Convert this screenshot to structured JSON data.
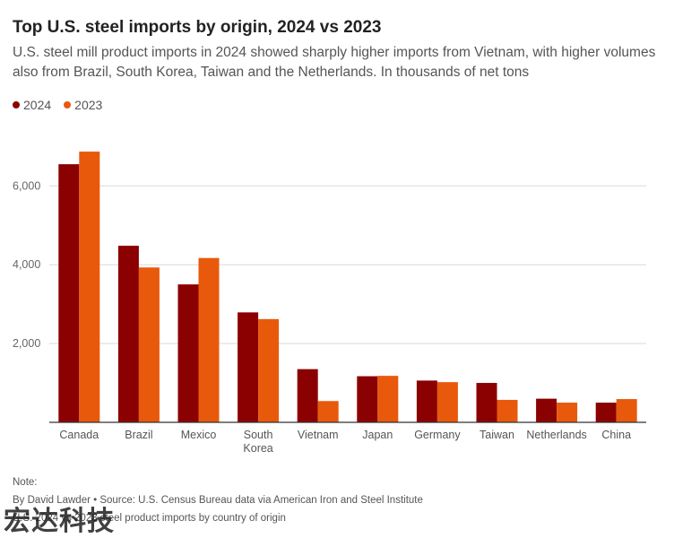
{
  "title": "Top U.S. steel imports by origin, 2024 vs 2023",
  "subtitle": "U.S. steel mill product imports in 2024 showed sharply higher imports from Vietnam, with higher volumes also from Brazil, South Korea, Taiwan and the Netherlands. In thousands of net tons",
  "legend": [
    {
      "label": "2024",
      "color": "#8b0000"
    },
    {
      "label": "2023",
      "color": "#e8590c"
    }
  ],
  "chart_data": {
    "type": "bar",
    "categories": [
      "Canada",
      "Brazil",
      "Mexico",
      "South Korea",
      "Vietnam",
      "Japan",
      "Germany",
      "Taiwan",
      "Netherlands",
      "China"
    ],
    "category_lines": [
      [
        "Canada"
      ],
      [
        "Brazil"
      ],
      [
        "Mexico"
      ],
      [
        "South",
        "Korea"
      ],
      [
        "Vietnam"
      ],
      [
        "Japan"
      ],
      [
        "Germany"
      ],
      [
        "Taiwan"
      ],
      [
        "Netherlands"
      ],
      [
        "China"
      ]
    ],
    "series": [
      {
        "name": "2024",
        "color": "#8b0000",
        "values": [
          6550,
          4480,
          3500,
          2790,
          1350,
          1170,
          1060,
          1000,
          600,
          500
        ]
      },
      {
        "name": "2023",
        "color": "#e8590c",
        "values": [
          6870,
          3930,
          4170,
          2620,
          540,
          1180,
          1020,
          570,
          500,
          590
        ]
      }
    ],
    "yticks": [
      2000,
      4000,
      6000
    ],
    "ytick_labels": [
      "2,000",
      "4,000",
      "6,000"
    ],
    "ylim": [
      0,
      7000
    ],
    "grid": true,
    "legend_position": "top-left"
  },
  "notes": {
    "heading": "Note:",
    "byline": "By David Lawder • Source: U.S. Census Bureau data via American Iron and Steel Institute",
    "caption": "U.S. 2024 vs 2023 steel product imports by country of origin"
  },
  "watermark": "宏达科技"
}
